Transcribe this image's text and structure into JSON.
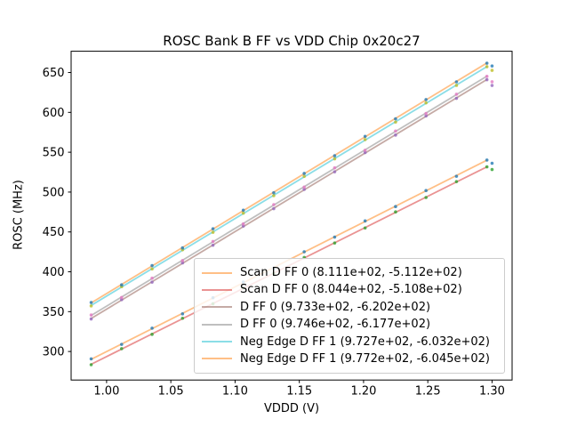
{
  "chart_data": {
    "type": "scatter",
    "title": "ROSC Bank B FF vs VDD Chip 0x20c27",
    "xlabel": "VDDD (V)",
    "ylabel": "ROSC (MHz)",
    "xlim": [
      0.9724,
      1.3156
    ],
    "ylim": [
      264.2,
      676.7
    ],
    "xticks": [
      1.0,
      1.05,
      1.1,
      1.15,
      1.2,
      1.25,
      1.3
    ],
    "yticks": [
      300,
      350,
      400,
      450,
      500,
      550,
      600,
      650
    ],
    "grid": false,
    "legend_position": "lower right",
    "x": [
      0.988,
      1.0117,
      1.0354,
      1.0591,
      1.0828,
      1.1064,
      1.1301,
      1.1538,
      1.1775,
      1.2012,
      1.2249,
      1.2486,
      1.2723,
      1.296,
      1.3
    ],
    "fit_span": [
      0.988,
      1.296
    ],
    "series": [
      {
        "label": "Scan D FF 0 (8.111e+02, -5.112e+02)",
        "slope": 811.1,
        "intercept": -511.2,
        "line_color": "rgba(255,127,14,0.5)",
        "dot_color": "#1f77b4",
        "y": [
          290.8,
          308.9,
          329.3,
          347.2,
          367.4,
          387.1,
          404.7,
          425.1,
          443.5,
          463.8,
          481.8,
          501.9,
          519.8,
          540.2,
          536.2
        ]
      },
      {
        "label": "Scan D FF 0 (8.044e+02, -5.108e+02)",
        "slope": 804.4,
        "intercept": -510.8,
        "line_color": "rgba(214,39,40,0.5)",
        "dot_color": "#2ca02c",
        "y": [
          283.4,
          303.6,
          321.5,
          341.7,
          359.9,
          379.8,
          397.7,
          417.9,
          436.1,
          455.0,
          475.1,
          493.2,
          513.1,
          531.6,
          528.3
        ]
      },
      {
        "label": "D FF 0 (9.733e+02, -6.202e+02)",
        "slope": 973.3,
        "intercept": -620.2,
        "line_color": "rgba(140,86,75,0.5)",
        "dot_color": "#9467bd",
        "y": [
          340.8,
          365.0,
          387.0,
          411.2,
          433.3,
          457.3,
          479.2,
          503.4,
          525.4,
          549.6,
          571.5,
          595.6,
          617.6,
          641.0,
          633.8
        ]
      },
      {
        "label": "D FF 0 (9.746e+02, -6.177e+02)",
        "slope": 974.6,
        "intercept": -617.7,
        "line_color": "rgba(127,127,127,0.5)",
        "dot_color": "#e377c2",
        "y": [
          345.8,
          367.8,
          392.0,
          414.0,
          438.1,
          460.1,
          484.3,
          506.3,
          530.4,
          552.5,
          576.6,
          598.7,
          622.8,
          645.2,
          638.4
        ]
      },
      {
        "label": "Neg Edge D FF 1 (9.727e+02, -6.032e+02)",
        "slope": 972.7,
        "intercept": -603.2,
        "line_color": "rgba(23,190,207,0.5)",
        "dot_color": "#bcbd22",
        "y": [
          357.2,
          381.4,
          403.5,
          427.6,
          449.6,
          473.6,
          495.5,
          519.7,
          541.7,
          565.9,
          587.8,
          611.9,
          633.9,
          657.3,
          652.7
        ]
      },
      {
        "label": "Neg Edge D FF 1 (9.772e+02, -6.045e+02)",
        "slope": 977.2,
        "intercept": -604.5,
        "line_color": "rgba(255,127,14,0.5)",
        "dot_color": "#1f77b4",
        "y": [
          361.5,
          383.6,
          407.8,
          429.9,
          454.0,
          477.2,
          499.2,
          523.4,
          545.6,
          569.9,
          591.9,
          616.1,
          638.3,
          661.7,
          658.2
        ]
      }
    ]
  }
}
